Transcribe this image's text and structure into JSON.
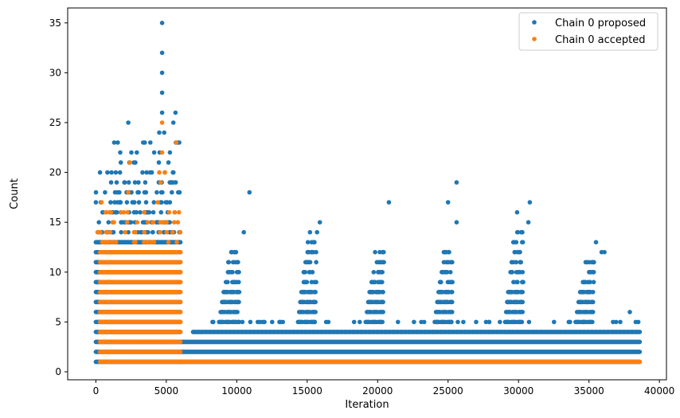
{
  "chart_data": {
    "type": "scatter",
    "title": "",
    "xlabel": "Iteration",
    "ylabel": "Count",
    "xlim": [
      -2000,
      40500
    ],
    "ylim": [
      -0.8,
      36.5
    ],
    "x_ticks": [
      0,
      5000,
      10000,
      15000,
      20000,
      25000,
      30000,
      35000,
      40000
    ],
    "x_tick_labels": [
      "0",
      "5000",
      "10000",
      "15000",
      "20000",
      "25000",
      "30000",
      "35000",
      "40000"
    ],
    "y_ticks": [
      0,
      5,
      10,
      15,
      20,
      25,
      30,
      35
    ],
    "y_tick_labels": [
      "0",
      "5",
      "10",
      "15",
      "20",
      "25",
      "30",
      "35"
    ],
    "grid": false,
    "legend_position": "top-right",
    "series": [
      {
        "name": "Chain 0 proposed",
        "color": "#1f77b4",
        "marker": "circle",
        "description_of_distribution": "Dense horizontal bands at every integer count; iterations 0-6000 span counts 1-20 with outliers up to 35 near iteration 4700; iterations 6000-38600 are dense at counts 1-4 with periodic clusters reaching 10-19",
        "points": [
          {
            "x": 4700,
            "y": 35
          },
          {
            "x": 4700,
            "y": 32
          },
          {
            "x": 4700,
            "y": 30
          },
          {
            "x": 4700,
            "y": 28
          },
          {
            "x": 4700,
            "y": 26
          },
          {
            "x": 5650,
            "y": 26
          },
          {
            "x": 2300,
            "y": 25
          },
          {
            "x": 5500,
            "y": 25
          },
          {
            "x": 4500,
            "y": 24
          },
          {
            "x": 4850,
            "y": 24
          },
          {
            "x": 5800,
            "y": 23
          },
          {
            "x": 1300,
            "y": 23
          },
          {
            "x": 10900,
            "y": 18
          },
          {
            "x": 20800,
            "y": 17
          },
          {
            "x": 25600,
            "y": 19
          },
          {
            "x": 25000,
            "y": 17
          },
          {
            "x": 30800,
            "y": 17
          },
          {
            "x": 15900,
            "y": 15
          },
          {
            "x": 15200,
            "y": 14
          },
          {
            "x": 15700,
            "y": 14
          },
          {
            "x": 25600,
            "y": 15
          },
          {
            "x": 29900,
            "y": 16
          },
          {
            "x": 30700,
            "y": 15
          },
          {
            "x": 10500,
            "y": 14
          },
          {
            "x": 35500,
            "y": 13
          },
          {
            "x": 35900,
            "y": 12
          },
          {
            "x": 36100,
            "y": 12
          },
          {
            "x": 37900,
            "y": 6
          },
          {
            "x": 38500,
            "y": 5
          }
        ]
      },
      {
        "name": "Chain 0 accepted",
        "color": "#ff7f0e",
        "marker": "circle",
        "description_of_distribution": "Iterations 0-6000 dense at counts 1-13 with sparse points up to 25; after 6000 almost all accepted counts equal 1",
        "points": [
          {
            "x": 4700,
            "y": 25
          },
          {
            "x": 4700,
            "y": 22
          },
          {
            "x": 5700,
            "y": 23
          },
          {
            "x": 2400,
            "y": 21
          },
          {
            "x": 4500,
            "y": 20
          },
          {
            "x": 4900,
            "y": 20
          },
          {
            "x": 4600,
            "y": 19
          },
          {
            "x": 2300,
            "y": 18
          },
          {
            "x": 400,
            "y": 17
          },
          {
            "x": 4400,
            "y": 17
          },
          {
            "x": 700,
            "y": 16
          },
          {
            "x": 5200,
            "y": 16
          }
        ]
      }
    ]
  },
  "legend": {
    "entries": [
      "Chain 0 proposed",
      "Chain 0 accepted"
    ]
  }
}
